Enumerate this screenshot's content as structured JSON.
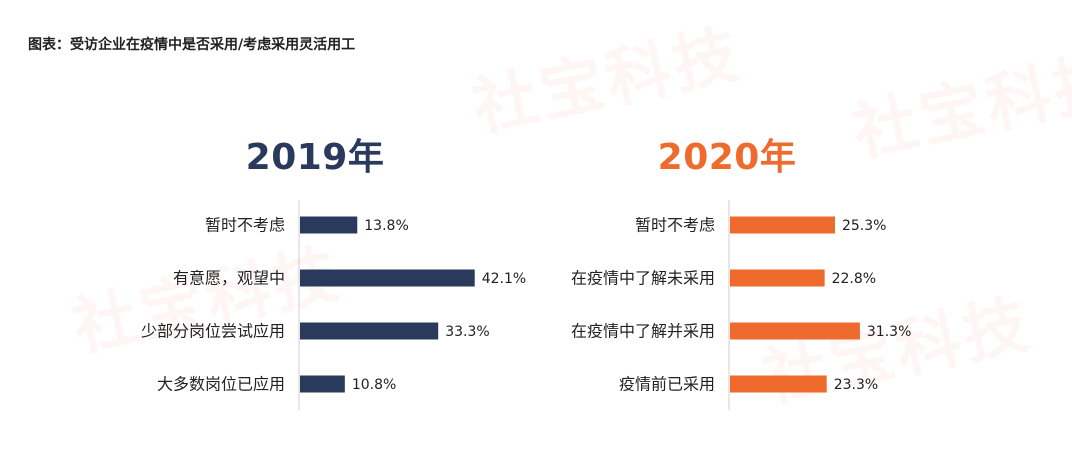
{
  "caption": "图表：受访企业在疫情中是否采用/考虑采用灵活用工",
  "watermark": "社宝科技",
  "colors": {
    "left": "#2a3a5c",
    "right": "#ee6a2d",
    "axis": "#cfcfcf"
  },
  "chart_data": [
    {
      "type": "bar",
      "orientation": "horizontal",
      "title": "2019年",
      "categories": [
        "暂时不考虑",
        "有意愿，观望中",
        "少部分岗位尝试应用",
        "大多数岗位已应用"
      ],
      "values": [
        13.8,
        42.1,
        33.3,
        10.8
      ],
      "labels": [
        "13.8%",
        "42.1%",
        "33.3%",
        "10.8%"
      ],
      "xlim": [
        0,
        50
      ],
      "unit": "%"
    },
    {
      "type": "bar",
      "orientation": "horizontal",
      "title": "2020年",
      "categories": [
        "暂时不考虑",
        "在疫情中了解未采用",
        "在疫情中了解并采用",
        "疫情前已采用"
      ],
      "values": [
        25.3,
        22.8,
        31.3,
        23.3
      ],
      "labels": [
        "25.3%",
        "22.8%",
        "31.3%",
        "23.3%"
      ],
      "xlim": [
        0,
        50
      ],
      "unit": "%"
    }
  ]
}
